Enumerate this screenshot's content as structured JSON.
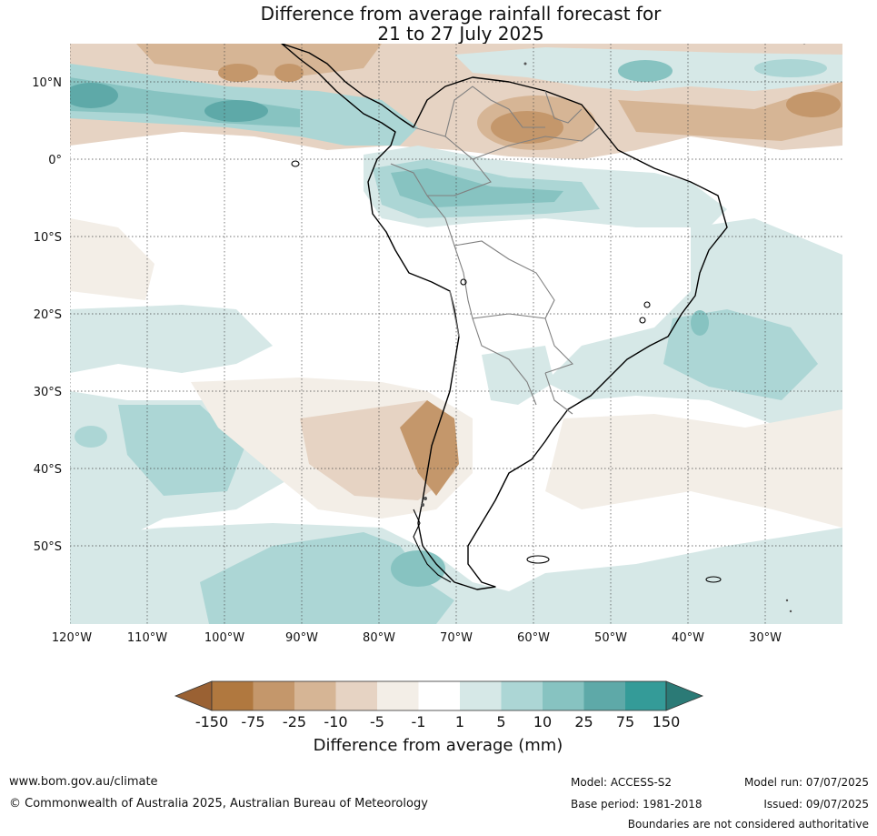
{
  "title": {
    "line1": "Difference from average rainfall forecast for",
    "line2": "21 to 27 July 2025"
  },
  "map": {
    "lat_labels": [
      "10°N",
      "0°",
      "10°S",
      "20°S",
      "30°S",
      "40°S",
      "50°S"
    ],
    "lon_labels": [
      "120°W",
      "110°W",
      "100°W",
      "90°W",
      "80°W",
      "70°W",
      "60°W",
      "50°W",
      "40°W",
      "30°W"
    ],
    "colors": {
      "dry150": "#9a6133",
      "dry75": "#b0783f",
      "dry25": "#c4976b",
      "dry10": "#d6b595",
      "dry5": "#e6d3c3",
      "dry1": "#f3eee7",
      "neutral": "#ffffff",
      "wet1": "#d6e8e7",
      "wet5": "#acd6d5",
      "wet10": "#87c3c1",
      "wet25": "#5ea9a8",
      "wet75": "#349b98",
      "wet150": "#2b7a76"
    }
  },
  "colorbar": {
    "tick_labels": [
      "-150",
      "-75",
      "-25",
      "-10",
      "-5",
      "-1",
      "1",
      "5",
      "10",
      "25",
      "75",
      "150"
    ],
    "title": "Difference from average (mm)"
  },
  "footer": {
    "website": "www.bom.gov.au/climate",
    "copyright": "© Commonwealth of Australia 2025, Australian Bureau of Meteorology",
    "model": "Model: ACCESS-S2",
    "base_period": "Base period: 1981-2018",
    "model_run": "Model run: 07/07/2025",
    "issued": "Issued: 09/07/2025",
    "disclaimer": "Boundaries are not considered authoritative"
  }
}
